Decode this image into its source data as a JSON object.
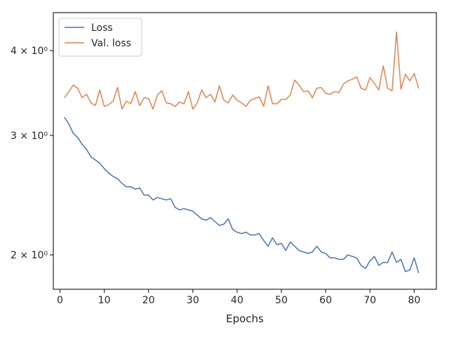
{
  "chart_data": {
    "type": "line",
    "title": "",
    "xlabel": "Epochs",
    "ylabel": "",
    "yscale": "log",
    "xlim": [
      -1.5,
      85
    ],
    "ylim": [
      1.78,
      4.55
    ],
    "x_ticks": [
      0,
      10,
      20,
      30,
      40,
      50,
      60,
      70,
      80
    ],
    "y_ticks": [
      {
        "value": 2,
        "label": "2 × 10⁰"
      },
      {
        "value": 3,
        "label": "3 × 10⁰"
      },
      {
        "value": 4,
        "label": "4 × 10⁰"
      }
    ],
    "grid": false,
    "legend": "top-left",
    "x": [
      1,
      2,
      3,
      4,
      5,
      6,
      7,
      8,
      9,
      10,
      11,
      12,
      13,
      14,
      15,
      16,
      17,
      18,
      19,
      20,
      21,
      22,
      23,
      24,
      25,
      26,
      27,
      28,
      29,
      30,
      31,
      32,
      33,
      34,
      35,
      36,
      37,
      38,
      39,
      40,
      41,
      42,
      43,
      44,
      45,
      46,
      47,
      48,
      49,
      50,
      51,
      52,
      53,
      54,
      55,
      56,
      57,
      58,
      59,
      60,
      61,
      62,
      63,
      64,
      65,
      66,
      67,
      68,
      69,
      70,
      71,
      72,
      73,
      74,
      75,
      76,
      77,
      78,
      79,
      80,
      81
    ],
    "series": [
      {
        "name": "Loss",
        "color": "#4c72b0",
        "values": [
          3.19,
          3.12,
          3.02,
          2.98,
          2.91,
          2.86,
          2.79,
          2.76,
          2.73,
          2.68,
          2.64,
          2.61,
          2.59,
          2.55,
          2.52,
          2.52,
          2.5,
          2.51,
          2.45,
          2.45,
          2.41,
          2.43,
          2.42,
          2.41,
          2.42,
          2.35,
          2.33,
          2.34,
          2.33,
          2.32,
          2.29,
          2.26,
          2.25,
          2.27,
          2.24,
          2.21,
          2.22,
          2.26,
          2.18,
          2.16,
          2.15,
          2.16,
          2.14,
          2.14,
          2.15,
          2.1,
          2.06,
          2.12,
          2.07,
          2.08,
          2.03,
          2.09,
          2.06,
          2.03,
          2.02,
          2.01,
          2.02,
          2.06,
          2.02,
          2.01,
          1.98,
          1.98,
          1.97,
          1.97,
          2.0,
          1.99,
          1.98,
          1.93,
          1.91,
          1.96,
          1.99,
          1.93,
          1.95,
          1.95,
          2.02,
          1.95,
          1.97,
          1.89,
          1.9,
          1.98,
          1.88
        ]
      },
      {
        "name": "Val. loss",
        "color": "#dd8452",
        "values": [
          3.41,
          3.48,
          3.56,
          3.52,
          3.41,
          3.45,
          3.35,
          3.32,
          3.5,
          3.31,
          3.33,
          3.37,
          3.53,
          3.28,
          3.37,
          3.34,
          3.48,
          3.32,
          3.41,
          3.4,
          3.28,
          3.44,
          3.49,
          3.35,
          3.34,
          3.31,
          3.36,
          3.34,
          3.48,
          3.28,
          3.35,
          3.5,
          3.41,
          3.45,
          3.36,
          3.55,
          3.38,
          3.35,
          3.44,
          3.38,
          3.35,
          3.31,
          3.38,
          3.4,
          3.42,
          3.31,
          3.55,
          3.34,
          3.34,
          3.39,
          3.39,
          3.44,
          3.62,
          3.56,
          3.48,
          3.49,
          3.41,
          3.52,
          3.53,
          3.46,
          3.45,
          3.48,
          3.47,
          3.57,
          3.61,
          3.63,
          3.66,
          3.52,
          3.5,
          3.65,
          3.58,
          3.5,
          3.8,
          3.52,
          3.49,
          4.26,
          3.51,
          3.69,
          3.61,
          3.7,
          3.52
        ]
      }
    ]
  }
}
